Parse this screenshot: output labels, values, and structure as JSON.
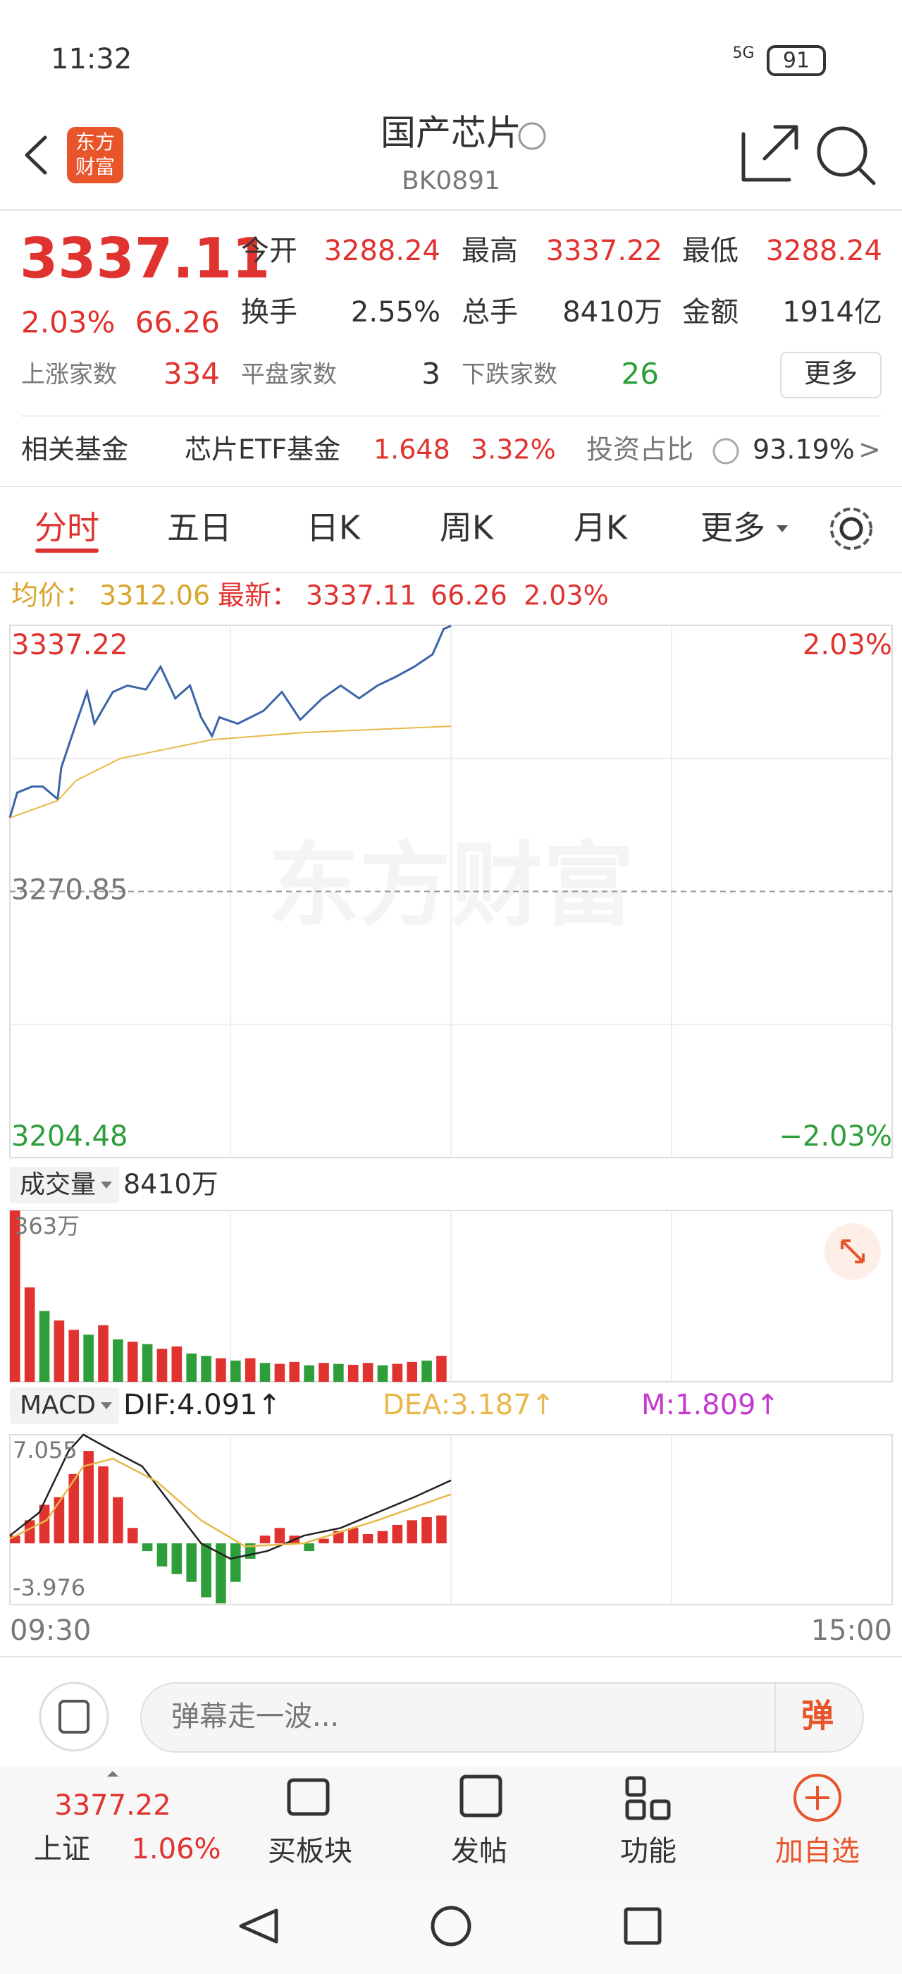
{
  "status_bar": {
    "time": "11:32",
    "network": "5G",
    "battery": "91"
  },
  "header": {
    "logo_top": "东方",
    "logo_bottom": "财富",
    "title": "国产芯片",
    "code": "BK0891"
  },
  "quote": {
    "price": "3337.11",
    "change_pct": "2.03%",
    "change": "66.26",
    "fields": [
      {
        "label": "今开",
        "value": "3288.24"
      },
      {
        "label": "最高",
        "value": "3337.22"
      },
      {
        "label": "最低",
        "value": "3288.24"
      },
      {
        "label": "换手",
        "value": "2.55%"
      },
      {
        "label": "总手",
        "value": "8410万"
      },
      {
        "label": "金额",
        "value": "1914亿"
      }
    ],
    "breadth": [
      {
        "label": "上涨家数",
        "value": "334"
      },
      {
        "label": "平盘家数",
        "value": "3"
      },
      {
        "label": "下跌家数",
        "value": "26"
      }
    ],
    "more": "更多"
  },
  "fund": {
    "label": "相关基金",
    "name": "芯片ETF基金",
    "price": "1.648",
    "change_pct": "3.32%",
    "ratio_label": "投资占比",
    "ratio": "93.19%",
    "arrow": ">"
  },
  "tabs": [
    "分时",
    "五日",
    "日K",
    "周K",
    "月K",
    "更多"
  ],
  "info": {
    "avg_label": "均价：",
    "avg": "3312.06",
    "latest_label": "最新：",
    "latest": "3337.11",
    "change": "66.26",
    "change_pct": "2.03%"
  },
  "watermark": "东方财富",
  "chart_data": [
    {
      "type": "line",
      "xlim": [
        0,
        240
      ],
      "xticks": [
        {
          "value": 0,
          "label": "09:30"
        },
        {
          "value": 240,
          "label": "15:00"
        }
      ],
      "ylim": [
        3204.48,
        3337.22
      ],
      "yticks": [
        3204.48,
        3270.85,
        3337.22
      ],
      "y2lim": [
        -2.03,
        2.03
      ],
      "y2ticks": [
        {
          "value": -2.03,
          "label": "−2.03%"
        },
        {
          "value": 2.03,
          "label": "2.03%"
        }
      ],
      "series": [
        {
          "color": "#3b64a8",
          "x": [
            0,
            2,
            6,
            9,
            13,
            14,
            18,
            21,
            23,
            28,
            32,
            37,
            41,
            45,
            49,
            52,
            55,
            57,
            62,
            69,
            74,
            79,
            85,
            90,
            95,
            100,
            105,
            110,
            115,
            118,
            120
          ],
          "values": [
            3289.2,
            3295.5,
            3297.0,
            3297.0,
            3293.9,
            3301.8,
            3312.7,
            3320.6,
            3312.7,
            3320.6,
            3322.2,
            3321.2,
            3326.9,
            3319.0,
            3322.2,
            3314.3,
            3309.6,
            3314.3,
            3312.7,
            3315.9,
            3320.6,
            3313.7,
            3319.0,
            3322.2,
            3319.0,
            3322.2,
            3324.4,
            3326.9,
            3330.0,
            3336.3,
            3337.11
          ]
        },
        {
          "color": "#e8b84a",
          "x": [
            0,
            13,
            18,
            30,
            55,
            80,
            120
          ],
          "values": [
            3289.2,
            3293.5,
            3298.5,
            3304.0,
            3308.7,
            3310.5,
            3312.06
          ]
        }
      ]
    },
    {
      "type": "bar",
      "label": "成交量",
      "total": "8410万",
      "xlim": [
        0,
        240
      ],
      "ylim": [
        0,
        363
      ],
      "yticks": [
        {
          "value": 363,
          "label": "363万"
        }
      ],
      "x": [
        0,
        4,
        8,
        12,
        16,
        20,
        24,
        28,
        32,
        36,
        40,
        44,
        48,
        52,
        56,
        60,
        64,
        68,
        72,
        76,
        80,
        84,
        88,
        92,
        96,
        100,
        104,
        108,
        112,
        116
      ],
      "values": [
        363,
        200,
        150,
        130,
        110,
        100,
        120,
        90,
        85,
        80,
        70,
        75,
        60,
        55,
        50,
        45,
        50,
        40,
        38,
        42,
        35,
        40,
        38,
        36,
        40,
        35,
        38,
        42,
        45,
        55
      ],
      "colors": [
        "#e0332f",
        "#e0332f",
        "#2e9e3a",
        "#e0332f",
        "#e0332f",
        "#2e9e3a",
        "#e0332f",
        "#2e9e3a",
        "#e0332f",
        "#2e9e3a",
        "#e0332f",
        "#e0332f",
        "#2e9e3a",
        "#2e9e3a",
        "#e0332f",
        "#2e9e3a",
        "#e0332f",
        "#2e9e3a",
        "#e0332f",
        "#e0332f",
        "#2e9e3a",
        "#e0332f",
        "#2e9e3a",
        "#e0332f",
        "#e0332f",
        "#2e9e3a",
        "#e0332f",
        "#e0332f",
        "#2e9e3a",
        "#e0332f"
      ]
    },
    {
      "type": "macd",
      "label": "MACD",
      "legend": [
        {
          "text": "DIF:4.091↑",
          "color": "#222222"
        },
        {
          "text": "DEA:3.187↑",
          "color": "#e8b84a"
        },
        {
          "text": "M:1.809↑",
          "color": "#c43ad0"
        }
      ],
      "xlim": [
        0,
        240
      ],
      "ylim": [
        -3.976,
        7.055
      ],
      "yticks": [
        -3.976,
        7.055
      ],
      "up_color": "#e0332f",
      "down_color": "#2e9e3a",
      "histogram": {
        "x": [
          0,
          4,
          8,
          12,
          16,
          20,
          24,
          28,
          32,
          36,
          40,
          44,
          48,
          52,
          56,
          60,
          64,
          68,
          72,
          76,
          80,
          84,
          88,
          92,
          96,
          100,
          104,
          108,
          112,
          116
        ],
        "values": [
          0.5,
          1.5,
          2.5,
          3,
          4.5,
          6,
          5,
          3,
          1,
          -0.5,
          -1.5,
          -2,
          -2.5,
          -3.5,
          -3.9,
          -2.5,
          -1,
          0.5,
          1,
          0.5,
          -0.5,
          0.3,
          0.8,
          1,
          0.6,
          0.8,
          1.2,
          1.5,
          1.7,
          1.809
        ]
      },
      "series": [
        {
          "color": "#222222",
          "x": [
            0,
            8,
            16,
            20,
            28,
            36,
            44,
            52,
            60,
            70,
            80,
            90,
            100,
            110,
            120
          ],
          "values": [
            0.5,
            2,
            6,
            7.055,
            6,
            5,
            2.5,
            0,
            -1,
            -0.5,
            0.5,
            1,
            2,
            3,
            4.091
          ]
        },
        {
          "color": "#e8b84a",
          "x": [
            0,
            10,
            20,
            28,
            40,
            52,
            64,
            80,
            100,
            120
          ],
          "values": [
            0.3,
            1.5,
            5,
            5.5,
            4,
            1.5,
            -0.2,
            0,
            1.5,
            3.187
          ]
        }
      ]
    }
  ],
  "comment": {
    "placeholder": "弹幕走一波...",
    "button": "弹"
  },
  "nav": {
    "index_value": "3377.22",
    "index_name": "上证",
    "index_pct": "1.06%",
    "items": [
      "买板块",
      "发帖",
      "功能",
      "加自选"
    ]
  }
}
